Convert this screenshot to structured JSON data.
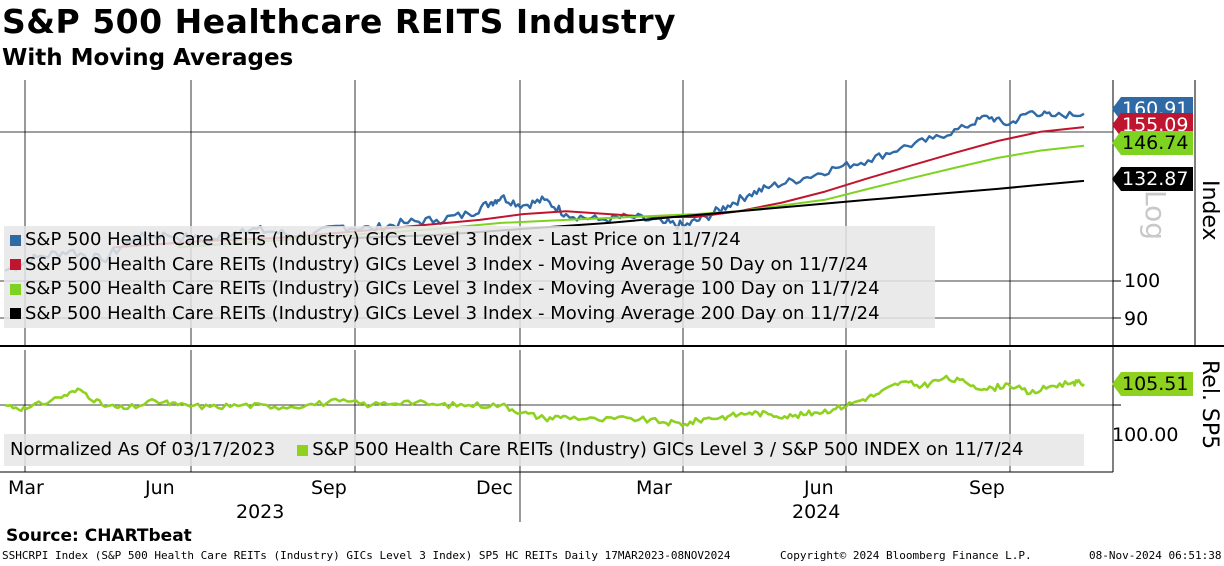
{
  "header": {
    "title": "S&P 500 Healthcare REITS Industry",
    "subtitle": "With Moving Averages"
  },
  "colors": {
    "last": "#2f6aa6",
    "ma50": "#c0152f",
    "ma100": "#7ed321",
    "ma200": "#000000",
    "rel": "#8fd11f"
  },
  "chart_data": [
    {
      "type": "line",
      "panel": "upper",
      "scale": "Log",
      "ylabel": "Index",
      "yticks": [
        90,
        100
      ],
      "xlabels": [
        "Mar",
        "Jun",
        "Sep",
        "Dec",
        "Mar",
        "Jun",
        "Sep"
      ],
      "years": [
        "2023",
        "2024"
      ],
      "legend": [
        "S&P 500 Health Care REITs (Industry) GICs Level 3 Index - Last Price on 11/7/24",
        "S&P 500 Health Care REITs (Industry) GICs Level 3 Index - Moving Average 50 Day on 11/7/24",
        "S&P 500 Health Care REITs (Industry) GICs Level 3 Index - Moving Average 100 Day on 11/7/24",
        "S&P 500 Health Care REITs (Industry) GICs Level 3 Index - Moving Average 200 Day on 11/7/24"
      ],
      "last_values": {
        "last": "160.91",
        "ma50": "155.09",
        "ma100": "146.74",
        "ma200": "132.87"
      },
      "series": [
        {
          "name": "Last Price",
          "color": "#2f6aa6",
          "x": [
            0,
            0.03,
            0.06,
            0.09,
            0.12,
            0.15,
            0.19,
            0.22,
            0.25,
            0.28,
            0.31,
            0.34,
            0.37,
            0.4,
            0.43,
            0.45,
            0.46,
            0.48,
            0.5,
            0.52,
            0.55,
            0.58,
            0.61,
            0.63,
            0.65,
            0.67,
            0.69,
            0.71,
            0.74,
            0.77,
            0.8,
            0.83,
            0.86,
            0.89,
            0.91,
            0.93,
            0.95,
            0.97,
            1.0
          ],
          "values": [
            103,
            107,
            109,
            106,
            113,
            114,
            112,
            116,
            115,
            113,
            117,
            116,
            118,
            119,
            121,
            125,
            127,
            124,
            126,
            121,
            119,
            120,
            118,
            117,
            120,
            124,
            128,
            131,
            134,
            138,
            141,
            146,
            150,
            155,
            160,
            156,
            162,
            160,
            161
          ]
        },
        {
          "name": "Moving Average 50 Day",
          "color": "#c0152f",
          "x": [
            0.1,
            0.18,
            0.25,
            0.32,
            0.38,
            0.44,
            0.48,
            0.52,
            0.56,
            0.6,
            0.64,
            0.68,
            0.72,
            0.76,
            0.8,
            0.84,
            0.88,
            0.92,
            0.96,
            1.0
          ],
          "values": [
            110,
            112,
            113,
            115,
            117,
            119,
            121,
            122,
            121,
            120,
            120,
            122,
            125,
            129,
            134,
            139,
            144,
            149,
            153,
            155
          ]
        },
        {
          "name": "Moving Average 100 Day",
          "color": "#7ed321",
          "x": [
            0.16,
            0.24,
            0.32,
            0.4,
            0.46,
            0.52,
            0.58,
            0.64,
            0.68,
            0.72,
            0.76,
            0.8,
            0.84,
            0.88,
            0.92,
            0.96,
            1.0
          ],
          "values": [
            110,
            112,
            114,
            116,
            118,
            119,
            120,
            121,
            122,
            124,
            126,
            130,
            134,
            138,
            142,
            145,
            147
          ]
        },
        {
          "name": "Moving Average 200 Day",
          "color": "#000000",
          "x": [
            0.32,
            0.4,
            0.48,
            0.56,
            0.62,
            0.68,
            0.74,
            0.8,
            0.86,
            0.92,
            0.96,
            1.0
          ],
          "values": [
            113,
            114,
            116,
            118,
            120,
            122,
            124,
            126,
            128,
            130,
            131.5,
            133
          ]
        }
      ]
    },
    {
      "type": "line",
      "panel": "lower",
      "ylabel": "Rel. SP5",
      "yticks": [
        100
      ],
      "ytick_labels": [
        "100.00"
      ],
      "legend_prefix": "Normalized As Of 03/17/2023",
      "legend": [
        "S&P 500 Health Care REITs (Industry) GICs Level 3 / S&P 500 INDEX on 11/7/24"
      ],
      "last_value": "105.51",
      "series": [
        {
          "name": "Relative to S&P 500",
          "color": "#8fd11f",
          "x": [
            0,
            0.02,
            0.05,
            0.07,
            0.09,
            0.11,
            0.14,
            0.16,
            0.19,
            0.22,
            0.25,
            0.28,
            0.31,
            0.34,
            0.37,
            0.4,
            0.43,
            0.46,
            0.48,
            0.5,
            0.52,
            0.55,
            0.58,
            0.61,
            0.63,
            0.65,
            0.67,
            0.69,
            0.71,
            0.73,
            0.75,
            0.77,
            0.79,
            0.81,
            0.83,
            0.85,
            0.87,
            0.89,
            0.91,
            0.93,
            0.95,
            0.97,
            0.99,
            1.0
          ],
          "values": [
            100,
            99,
            102,
            104,
            100,
            99,
            101,
            100,
            99.5,
            100,
            99.5,
            100,
            101,
            100,
            101,
            100,
            100,
            100,
            98,
            96.5,
            97,
            96,
            96.5,
            95.5,
            95,
            96.5,
            97,
            98,
            97.5,
            97,
            98,
            99,
            101,
            103,
            106,
            105,
            107,
            106,
            104,
            105.5,
            103,
            105,
            106,
            105.5
          ]
        }
      ]
    }
  ],
  "footer": {
    "source": "Source: CHARTbeat",
    "ticker_info": "SSHCRPI Index (S&P 500 Health Care REITs (Industry) GICs Level 3 Index) SP5 HC REITs  Daily 17MAR2023-08NOV2024",
    "copyright": "Copyright© 2024 Bloomberg Finance L.P.",
    "timestamp": "08-Nov-2024 06:51:38"
  }
}
